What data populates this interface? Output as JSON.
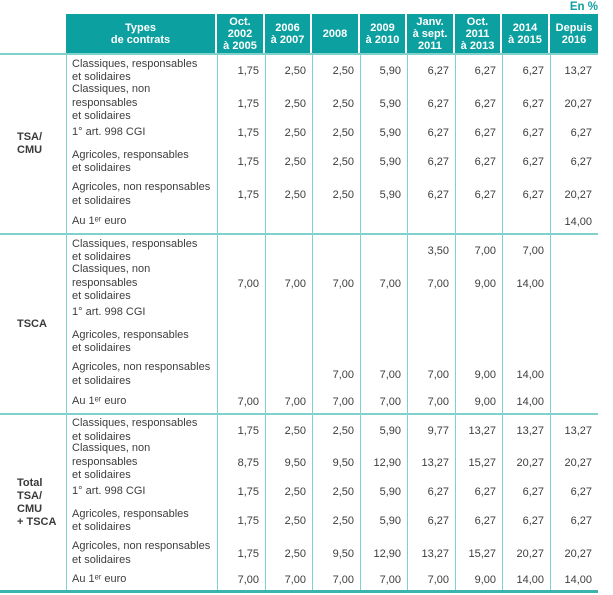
{
  "unit_label": "En %",
  "colors": {
    "accent_teal": "#0da0a0",
    "grid_line_teal": "#7fd2cb",
    "bottom_rule_teal": "#3cb3af",
    "header_text": "#ffffff",
    "body_text": "#3d3d3d"
  },
  "header": {
    "types": "Types\nde contrats",
    "periods": [
      "Oct.\n2002\nà 2005",
      "2006\nà 2007",
      "2008",
      "2009\nà 2010",
      "Janv.\nà sept.\n2011",
      "Oct.\n2011\nà 2013",
      "2014\nà 2015",
      "Depuis\n2016"
    ]
  },
  "groups": [
    {
      "label": "TSA/\nCMU",
      "rows": [
        {
          "label": "Classiques, responsables\net solidaires",
          "values": [
            "1,75",
            "2,50",
            "2,50",
            "5,90",
            "6,27",
            "6,27",
            "6,27",
            "13,27"
          ]
        },
        {
          "label": "Classiques, non responsables\net solidaires",
          "values": [
            "1,75",
            "2,50",
            "2,50",
            "5,90",
            "6,27",
            "6,27",
            "6,27",
            "20,27"
          ]
        },
        {
          "label": "1° art. 998 CGI",
          "values": [
            "1,75",
            "2,50",
            "2,50",
            "5,90",
            "6,27",
            "6,27",
            "6,27",
            "6,27"
          ]
        },
        {
          "label": "Agricoles, responsables\net solidaires",
          "values": [
            "1,75",
            "2,50",
            "2,50",
            "5,90",
            "6,27",
            "6,27",
            "6,27",
            "6,27"
          ]
        },
        {
          "label": "Agricoles, non responsables\net solidaires",
          "values": [
            "1,75",
            "2,50",
            "2,50",
            "5,90",
            "6,27",
            "6,27",
            "6,27",
            "20,27"
          ]
        },
        {
          "label": "Au 1ᵉʳ euro",
          "values": [
            "",
            "",
            "",
            "",
            "",
            "",
            "",
            "14,00"
          ]
        }
      ]
    },
    {
      "label": "TSCA",
      "rows": [
        {
          "label": "Classiques, responsables\net solidaires",
          "values": [
            "",
            "",
            "",
            "",
            "3,50",
            "7,00",
            "7,00",
            ""
          ]
        },
        {
          "label": "Classiques, non responsables\net solidaires",
          "values": [
            "7,00",
            "7,00",
            "7,00",
            "7,00",
            "7,00",
            "9,00",
            "14,00",
            ""
          ]
        },
        {
          "label": "1° art. 998 CGI",
          "values": [
            "",
            "",
            "",
            "",
            "",
            "",
            "",
            ""
          ]
        },
        {
          "label": "Agricoles, responsables\net solidaires",
          "values": [
            "",
            "",
            "",
            "",
            "",
            "",
            "",
            ""
          ]
        },
        {
          "label": "Agricoles, non responsables\net solidaires",
          "values": [
            "",
            "",
            "7,00",
            "7,00",
            "7,00",
            "9,00",
            "14,00",
            ""
          ]
        },
        {
          "label": "Au 1ᵉʳ euro",
          "values": [
            "7,00",
            "7,00",
            "7,00",
            "7,00",
            "7,00",
            "9,00",
            "14,00",
            ""
          ]
        }
      ]
    },
    {
      "label": "Total\nTSA/\nCMU\n+ TSCA",
      "rows": [
        {
          "label": "Classiques, responsables\net solidaires",
          "values": [
            "1,75",
            "2,50",
            "2,50",
            "5,90",
            "9,77",
            "13,27",
            "13,27",
            "13,27"
          ]
        },
        {
          "label": "Classiques, non responsables\net solidaires",
          "values": [
            "8,75",
            "9,50",
            "9,50",
            "12,90",
            "13,27",
            "15,27",
            "20,27",
            "20,27"
          ]
        },
        {
          "label": "1° art. 998 CGI",
          "values": [
            "1,75",
            "2,50",
            "2,50",
            "5,90",
            "6,27",
            "6,27",
            "6,27",
            "6,27"
          ]
        },
        {
          "label": "Agricoles, responsables\net solidaires",
          "values": [
            "1,75",
            "2,50",
            "2,50",
            "5,90",
            "6,27",
            "6,27",
            "6,27",
            "6,27"
          ]
        },
        {
          "label": "Agricoles, non responsables\net solidaires",
          "values": [
            "1,75",
            "2,50",
            "9,50",
            "12,90",
            "13,27",
            "15,27",
            "20,27",
            "20,27"
          ]
        },
        {
          "label": "Au 1ᵉʳ euro",
          "values": [
            "7,00",
            "7,00",
            "7,00",
            "7,00",
            "7,00",
            "9,00",
            "14,00",
            "14,00"
          ]
        }
      ]
    }
  ]
}
